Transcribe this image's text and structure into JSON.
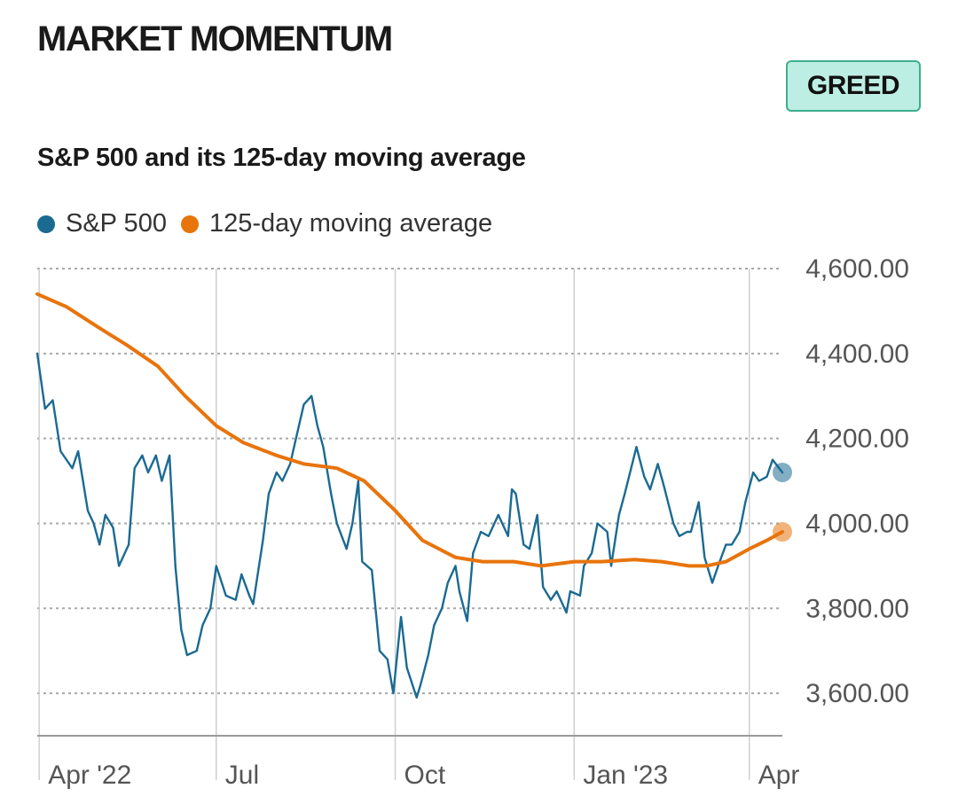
{
  "header": {
    "title": "MARKET MOMENTUM",
    "badge": "GREED",
    "badge_color": "#bdeee3"
  },
  "chart_data": {
    "type": "line",
    "title": "S&P 500 and its 125-day moving average",
    "legend_placement": "top-left",
    "grid": true,
    "y_ticks": [
      "4,600.00",
      "4,400.00",
      "4,200.00",
      "4,000.00",
      "3,800.00",
      "3,600.00"
    ],
    "y_tick_values": [
      4600,
      4400,
      4200,
      4000,
      3800,
      3600
    ],
    "ylim": [
      3500,
      4600
    ],
    "xlim": [
      "2022-03-31",
      "2023-04-18"
    ],
    "x_ticks": [
      {
        "label": "Apr '22",
        "date": "2022-04-01"
      },
      {
        "label": "Jul",
        "date": "2022-07-01"
      },
      {
        "label": "Oct",
        "date": "2022-10-01"
      },
      {
        "label": "Jan '23",
        "date": "2023-01-01"
      },
      {
        "label": "Apr",
        "date": "2023-04-01"
      }
    ],
    "series": [
      {
        "name": "S&P 500",
        "color": "#1b6a92",
        "points": [
          [
            "2022-03-31",
            4400
          ],
          [
            "2022-04-04",
            4270
          ],
          [
            "2022-04-08",
            4290
          ],
          [
            "2022-04-12",
            4170
          ],
          [
            "2022-04-18",
            4130
          ],
          [
            "2022-04-21",
            4170
          ],
          [
            "2022-04-26",
            4030
          ],
          [
            "2022-04-29",
            4000
          ],
          [
            "2022-05-02",
            3950
          ],
          [
            "2022-05-05",
            4020
          ],
          [
            "2022-05-09",
            3990
          ],
          [
            "2022-05-12",
            3900
          ],
          [
            "2022-05-17",
            3950
          ],
          [
            "2022-05-20",
            4130
          ],
          [
            "2022-05-24",
            4160
          ],
          [
            "2022-05-27",
            4120
          ],
          [
            "2022-05-31",
            4160
          ],
          [
            "2022-06-03",
            4100
          ],
          [
            "2022-06-07",
            4160
          ],
          [
            "2022-06-10",
            3900
          ],
          [
            "2022-06-13",
            3750
          ],
          [
            "2022-06-16",
            3690
          ],
          [
            "2022-06-21",
            3700
          ],
          [
            "2022-06-24",
            3760
          ],
          [
            "2022-06-28",
            3800
          ],
          [
            "2022-07-01",
            3900
          ],
          [
            "2022-07-06",
            3830
          ],
          [
            "2022-07-11",
            3820
          ],
          [
            "2022-07-14",
            3880
          ],
          [
            "2022-07-18",
            3830
          ],
          [
            "2022-07-20",
            3810
          ],
          [
            "2022-07-25",
            3960
          ],
          [
            "2022-07-28",
            4070
          ],
          [
            "2022-08-01",
            4120
          ],
          [
            "2022-08-04",
            4100
          ],
          [
            "2022-08-08",
            4140
          ],
          [
            "2022-08-11",
            4200
          ],
          [
            "2022-08-15",
            4280
          ],
          [
            "2022-08-19",
            4300
          ],
          [
            "2022-08-22",
            4230
          ],
          [
            "2022-08-25",
            4180
          ],
          [
            "2022-08-29",
            4070
          ],
          [
            "2022-09-01",
            4000
          ],
          [
            "2022-09-06",
            3940
          ],
          [
            "2022-09-09",
            4000
          ],
          [
            "2022-09-12",
            4100
          ],
          [
            "2022-09-14",
            3910
          ],
          [
            "2022-09-19",
            3890
          ],
          [
            "2022-09-23",
            3700
          ],
          [
            "2022-09-27",
            3680
          ],
          [
            "2022-09-30",
            3600
          ],
          [
            "2022-10-04",
            3780
          ],
          [
            "2022-10-07",
            3660
          ],
          [
            "2022-10-12",
            3590
          ],
          [
            "2022-10-14",
            3620
          ],
          [
            "2022-10-18",
            3690
          ],
          [
            "2022-10-21",
            3760
          ],
          [
            "2022-10-25",
            3800
          ],
          [
            "2022-10-28",
            3860
          ],
          [
            "2022-11-01",
            3900
          ],
          [
            "2022-11-03",
            3840
          ],
          [
            "2022-11-07",
            3770
          ],
          [
            "2022-11-10",
            3930
          ],
          [
            "2022-11-14",
            3980
          ],
          [
            "2022-11-18",
            3970
          ],
          [
            "2022-11-23",
            4020
          ],
          [
            "2022-11-28",
            3970
          ],
          [
            "2022-11-30",
            4080
          ],
          [
            "2022-12-02",
            4070
          ],
          [
            "2022-12-06",
            3950
          ],
          [
            "2022-12-09",
            3940
          ],
          [
            "2022-12-13",
            4020
          ],
          [
            "2022-12-16",
            3850
          ],
          [
            "2022-12-20",
            3820
          ],
          [
            "2022-12-23",
            3840
          ],
          [
            "2022-12-28",
            3790
          ],
          [
            "2022-12-30",
            3840
          ],
          [
            "2023-01-04",
            3830
          ],
          [
            "2023-01-06",
            3900
          ],
          [
            "2023-01-10",
            3930
          ],
          [
            "2023-01-13",
            4000
          ],
          [
            "2023-01-18",
            3980
          ],
          [
            "2023-01-20",
            3900
          ],
          [
            "2023-01-24",
            4020
          ],
          [
            "2023-01-27",
            4070
          ],
          [
            "2023-02-02",
            4180
          ],
          [
            "2023-02-06",
            4110
          ],
          [
            "2023-02-09",
            4080
          ],
          [
            "2023-02-13",
            4140
          ],
          [
            "2023-02-16",
            4090
          ],
          [
            "2023-02-21",
            4000
          ],
          [
            "2023-02-24",
            3970
          ],
          [
            "2023-02-28",
            3980
          ],
          [
            "2023-03-02",
            3980
          ],
          [
            "2023-03-06",
            4050
          ],
          [
            "2023-03-09",
            3920
          ],
          [
            "2023-03-13",
            3860
          ],
          [
            "2023-03-16",
            3900
          ],
          [
            "2023-03-20",
            3950
          ],
          [
            "2023-03-23",
            3950
          ],
          [
            "2023-03-27",
            3980
          ],
          [
            "2023-03-30",
            4050
          ],
          [
            "2023-04-03",
            4120
          ],
          [
            "2023-04-06",
            4100
          ],
          [
            "2023-04-10",
            4110
          ],
          [
            "2023-04-13",
            4150
          ],
          [
            "2023-04-18",
            4120
          ]
        ]
      },
      {
        "name": "125-day moving average",
        "color": "#e8740c",
        "points": [
          [
            "2022-03-31",
            4540
          ],
          [
            "2022-04-15",
            4510
          ],
          [
            "2022-05-02",
            4460
          ],
          [
            "2022-05-16",
            4420
          ],
          [
            "2022-06-01",
            4370
          ],
          [
            "2022-06-15",
            4300
          ],
          [
            "2022-07-01",
            4230
          ],
          [
            "2022-07-15",
            4190
          ],
          [
            "2022-08-01",
            4160
          ],
          [
            "2022-08-15",
            4140
          ],
          [
            "2022-09-01",
            4130
          ],
          [
            "2022-09-15",
            4100
          ],
          [
            "2022-10-01",
            4030
          ],
          [
            "2022-10-15",
            3960
          ],
          [
            "2022-11-01",
            3920
          ],
          [
            "2022-11-15",
            3910
          ],
          [
            "2022-12-01",
            3910
          ],
          [
            "2022-12-15",
            3900
          ],
          [
            "2023-01-01",
            3910
          ],
          [
            "2023-01-15",
            3910
          ],
          [
            "2023-02-01",
            3915
          ],
          [
            "2023-02-15",
            3910
          ],
          [
            "2023-03-01",
            3900
          ],
          [
            "2023-03-10",
            3900
          ],
          [
            "2023-03-20",
            3910
          ],
          [
            "2023-04-01",
            3940
          ],
          [
            "2023-04-10",
            3960
          ],
          [
            "2023-04-18",
            3980
          ]
        ]
      }
    ]
  }
}
